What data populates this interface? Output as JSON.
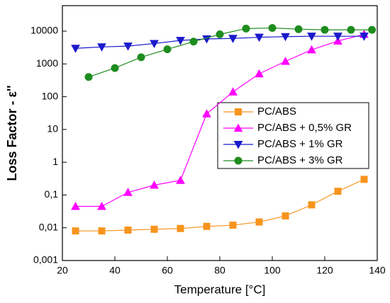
{
  "chart_data": {
    "type": "line",
    "x_label": "Temperature [°C]",
    "y_label": "Loss Factor - ε''",
    "log_scale_y": true,
    "xlim": [
      20,
      140
    ],
    "xticks": [
      20,
      40,
      60,
      80,
      100,
      120,
      140
    ],
    "ylim": [
      0.001,
      60000
    ],
    "yticks": [
      {
        "value": 0.001,
        "label": "0,001"
      },
      {
        "value": 0.01,
        "label": "0,01"
      },
      {
        "value": 0.1,
        "label": "0,1"
      },
      1,
      10,
      100,
      1000,
      10000
    ],
    "legend": "right",
    "series": [
      {
        "name": "PC/ABS",
        "color": "#f7941d",
        "marker": "square",
        "x": [
          25,
          35,
          45,
          55,
          65,
          75,
          85,
          95,
          105,
          115,
          125,
          135
        ],
        "values": [
          0.008,
          0.008,
          0.0085,
          0.009,
          0.0095,
          0.011,
          0.012,
          0.015,
          0.023,
          0.05,
          0.13,
          0.3
        ]
      },
      {
        "name": "PC/ABS + 0,5% GR",
        "color": "#ff00ff",
        "marker": "triangle-up",
        "x": [
          25,
          35,
          45,
          55,
          65,
          75,
          85,
          95,
          105,
          115,
          125,
          135
        ],
        "values": [
          0.045,
          0.045,
          0.12,
          0.2,
          0.28,
          30,
          140,
          500,
          1200,
          2700,
          5000,
          8000
        ]
      },
      {
        "name": "PC/ABS + 1% GR",
        "color": "#1a1acc",
        "marker": "triangle-down",
        "x": [
          25,
          35,
          45,
          55,
          65,
          75,
          85,
          95,
          105,
          115,
          125,
          135
        ],
        "values": [
          3000,
          3300,
          3500,
          4200,
          5200,
          5800,
          6000,
          6500,
          6800,
          7000,
          7000,
          7000
        ]
      },
      {
        "name": "PC/ABS + 3% GR",
        "color": "#1e8c1e",
        "marker": "circle",
        "x": [
          30,
          40,
          50,
          60,
          70,
          80,
          90,
          100,
          110,
          120,
          130,
          138
        ],
        "values": [
          400,
          750,
          1600,
          2800,
          4800,
          8000,
          12000,
          12500,
          11500,
          11000,
          11000,
          11000
        ]
      }
    ]
  }
}
